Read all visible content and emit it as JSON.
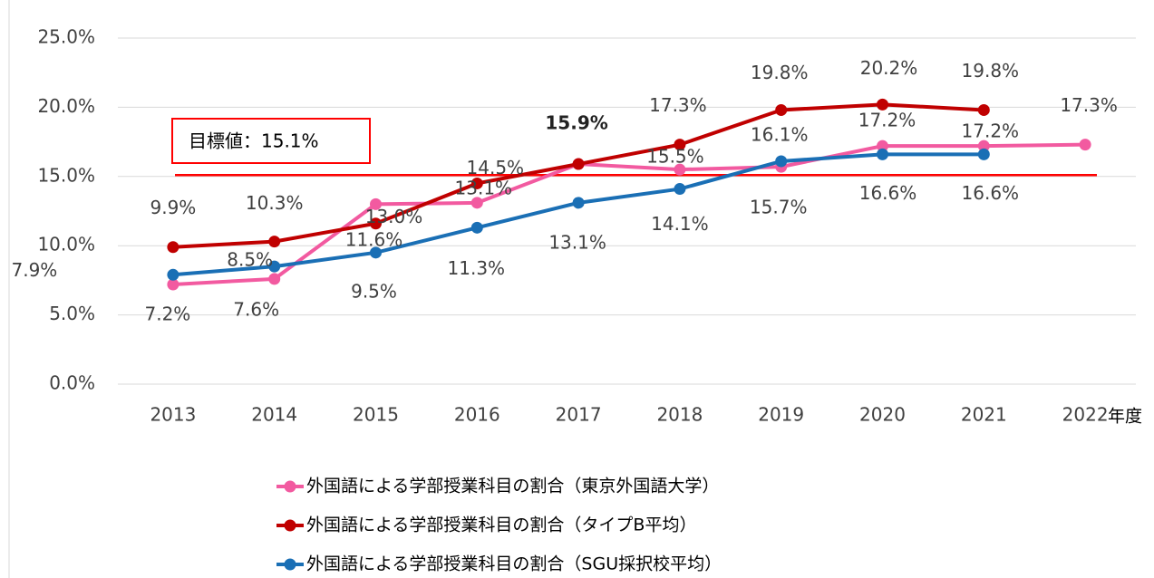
{
  "chart_data": {
    "type": "line",
    "categories": [
      "2013",
      "2014",
      "2015",
      "2016",
      "2017",
      "2018",
      "2019",
      "2020",
      "2021",
      "2022"
    ],
    "xlabel": "年度",
    "ylim": [
      0,
      25
    ],
    "yticks": [
      {
        "value": 0,
        "label": "0.0%"
      },
      {
        "value": 5,
        "label": "5.0%"
      },
      {
        "value": 10,
        "label": "10.0%"
      },
      {
        "value": 15,
        "label": "15.0%"
      },
      {
        "value": 20,
        "label": "20.0%"
      },
      {
        "value": 25,
        "label": "25.0%"
      }
    ],
    "grid": true,
    "series": [
      {
        "name": "外国語による学部授業科目の割合（東京外国語大学）",
        "color": "#f25aa0",
        "values": [
          7.2,
          7.6,
          13.0,
          13.1,
          15.9,
          15.5,
          15.7,
          17.2,
          17.2,
          17.3
        ],
        "value_labels": [
          "7.2%",
          "7.6%",
          "13.0%",
          "13.1%",
          null,
          "15.5%",
          "15.7%",
          "17.2%",
          "17.2%",
          "17.3%"
        ]
      },
      {
        "name": "外国語による学部授業科目の割合（タイプB平均）",
        "color": "#c00000",
        "values": [
          9.9,
          10.3,
          11.6,
          14.5,
          15.9,
          17.3,
          19.8,
          20.2,
          19.8,
          null
        ],
        "value_labels": [
          "9.9%",
          "10.3%",
          "11.6%",
          "14.5%",
          "15.9%",
          "17.3%",
          "19.8%",
          "20.2%",
          "19.8%",
          null
        ]
      },
      {
        "name": "外国語による学部授業科目の割合（SGU採択校平均）",
        "color": "#1a6fb5",
        "values": [
          7.9,
          8.5,
          9.5,
          11.3,
          13.1,
          14.1,
          16.1,
          16.6,
          16.6,
          null
        ],
        "value_labels": [
          "7.9%",
          "8.5%",
          "9.5%",
          "11.3%",
          "13.1%",
          "14.1%",
          "16.1%",
          "16.6%",
          "16.6%",
          null
        ]
      }
    ],
    "target": {
      "value": 15.1,
      "label": "目標値：15.1%",
      "color": "#ff0000"
    }
  }
}
